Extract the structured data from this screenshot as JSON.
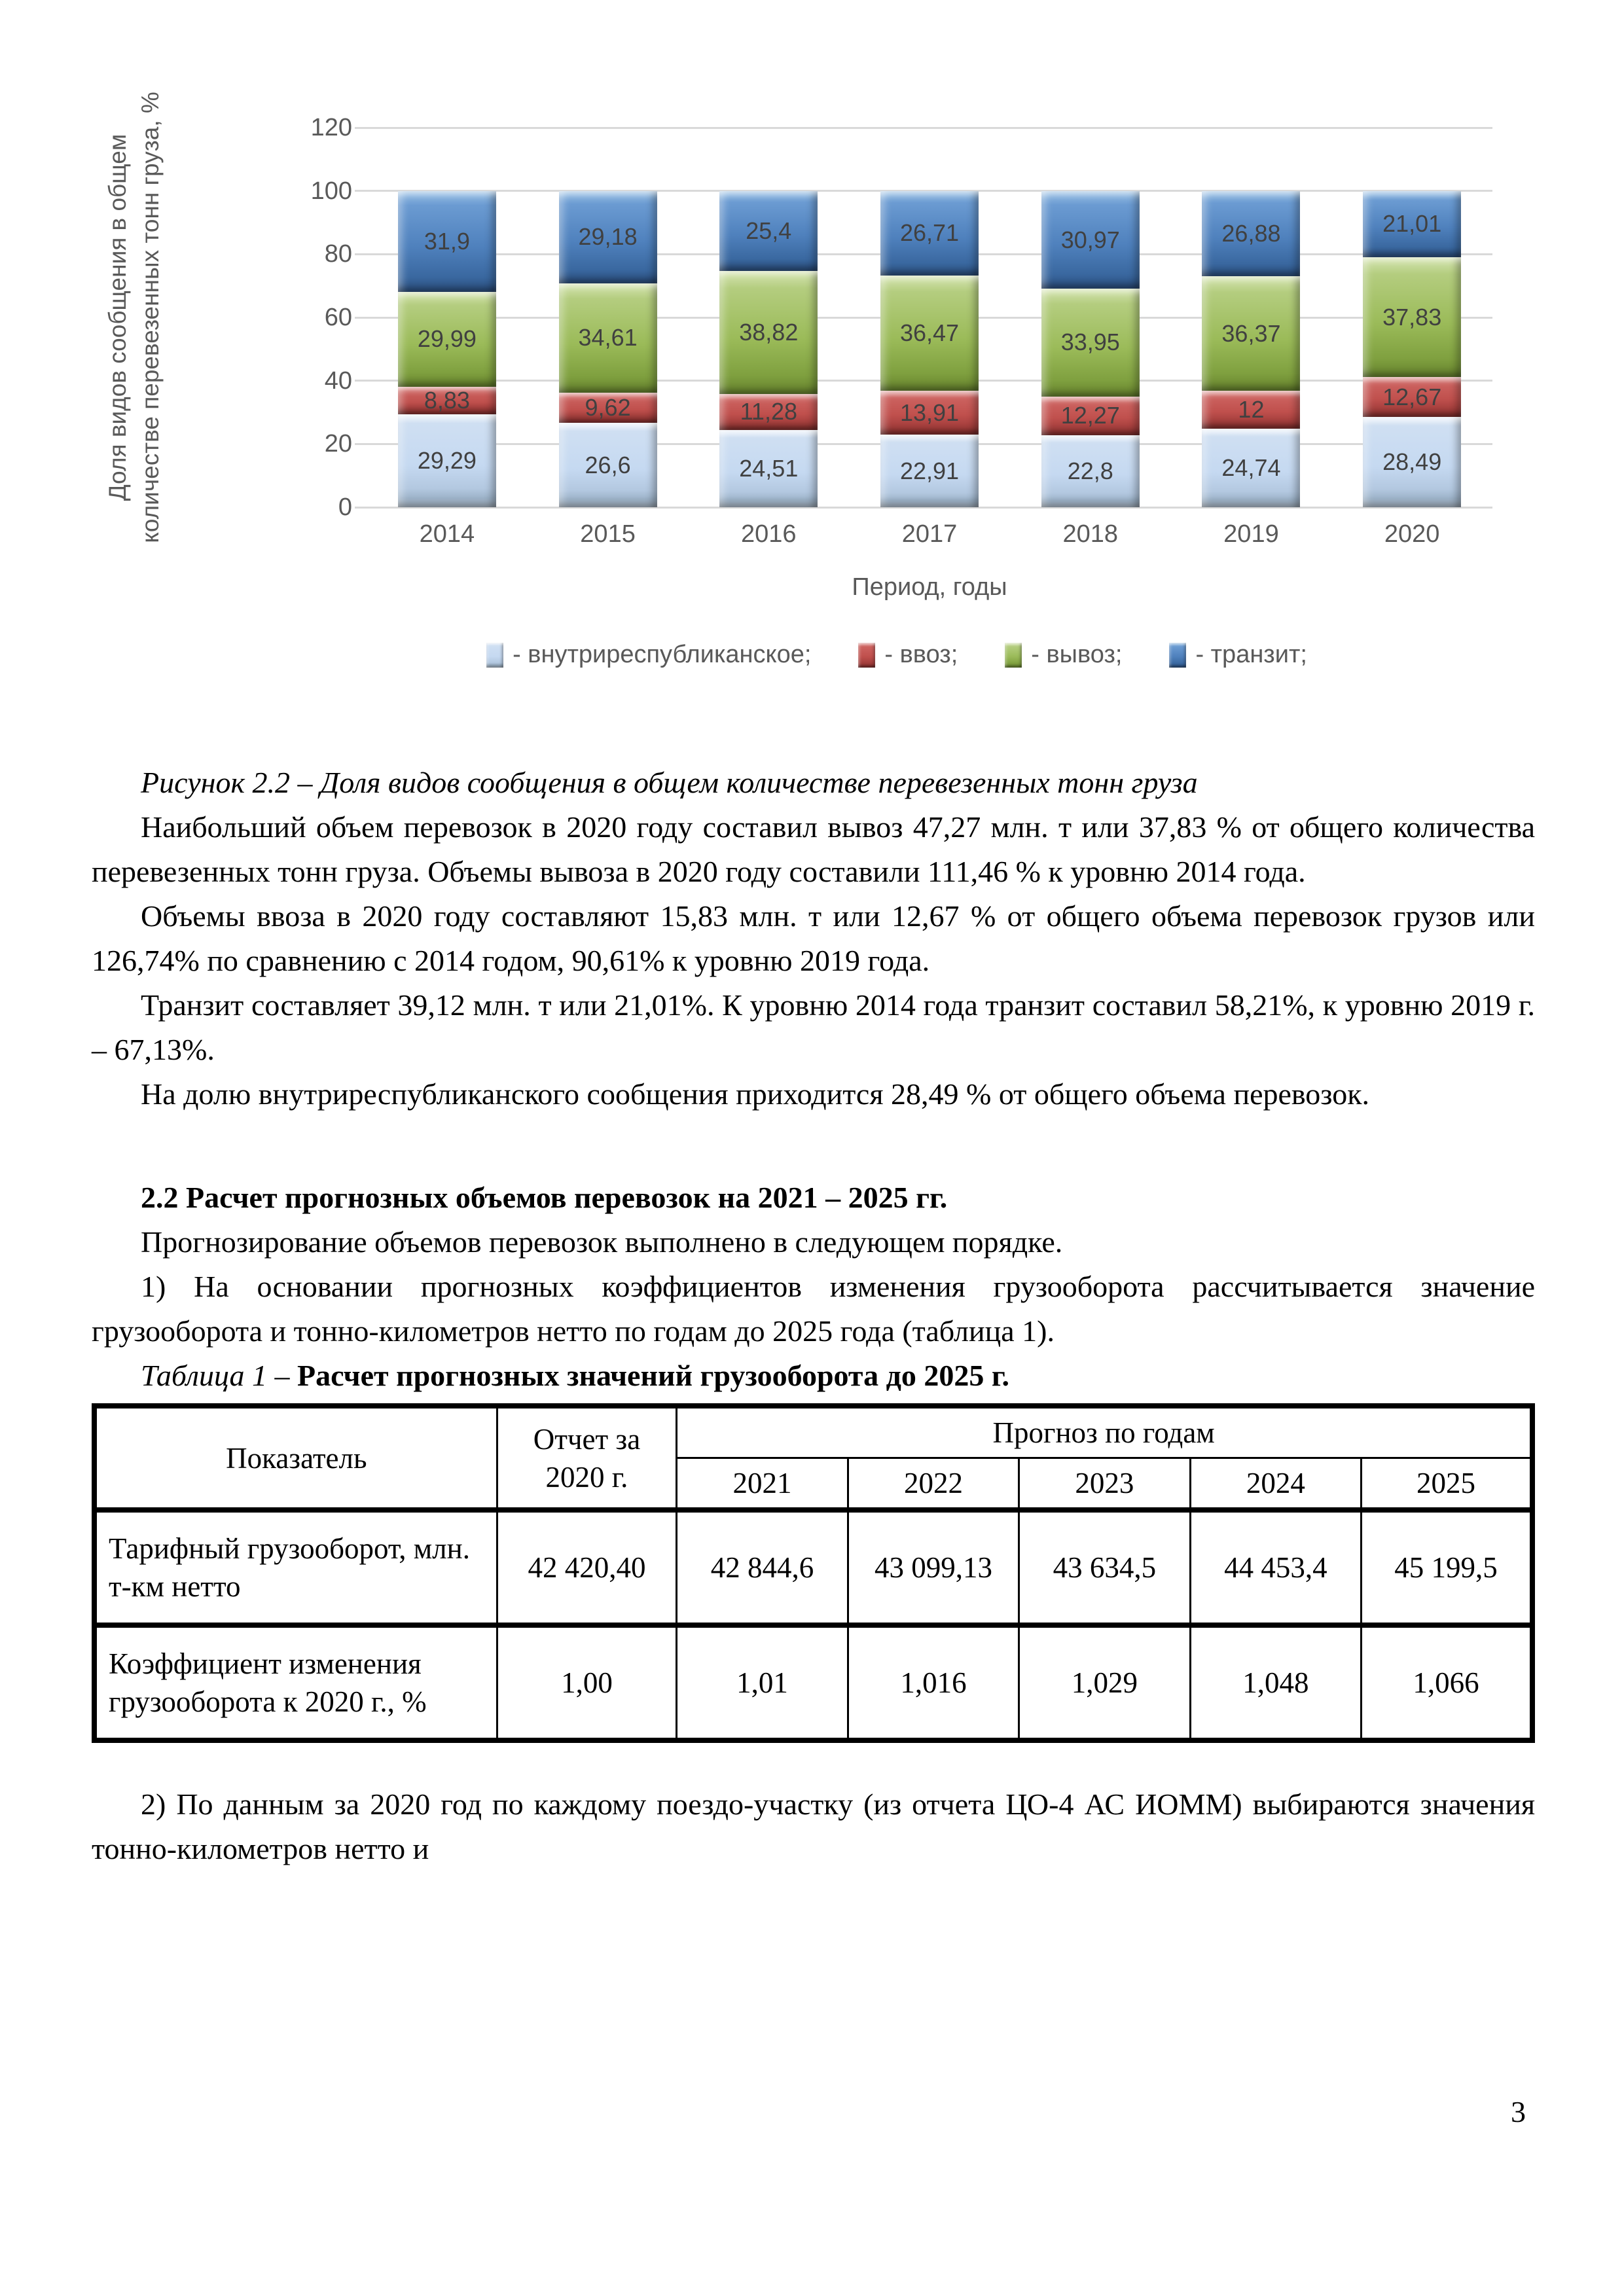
{
  "chart_data": {
    "type": "bar",
    "stacked": true,
    "categories": [
      "2014",
      "2015",
      "2016",
      "2017",
      "2018",
      "2019",
      "2020"
    ],
    "series": [
      {
        "name": "внутриреспубликанское",
        "color": "#C5D9F1",
        "values": [
          29.29,
          26.6,
          24.51,
          22.91,
          22.8,
          24.74,
          28.49
        ],
        "labels": [
          "29,29",
          "26,6",
          "24,51",
          "22,91",
          "22,8",
          "24,74",
          "28,49"
        ]
      },
      {
        "name": "ввоз",
        "color": "#C0504D",
        "values": [
          8.83,
          9.62,
          11.28,
          13.91,
          12.27,
          12,
          12.67
        ],
        "labels": [
          "8,83",
          "9,62",
          "11,28",
          "13,91",
          "12,27",
          "12",
          "12,67"
        ]
      },
      {
        "name": "вывоз",
        "color": "#9BBB59",
        "values": [
          29.99,
          34.61,
          38.82,
          36.47,
          33.95,
          36.37,
          37.83
        ],
        "labels": [
          "29,99",
          "34,61",
          "38,82",
          "36,47",
          "33,95",
          "36,37",
          "37,83"
        ]
      },
      {
        "name": "транзит",
        "color": "#4F81BD",
        "values": [
          31.9,
          29.18,
          25.4,
          26.71,
          30.97,
          26.88,
          21.01
        ],
        "labels": [
          "31,9",
          "29,18",
          "25,4",
          "26,71",
          "30,97",
          "26,88",
          "21,01"
        ]
      }
    ],
    "ylim": [
      0,
      120
    ],
    "yticks": [
      0,
      20,
      40,
      60,
      80,
      100,
      120
    ],
    "grid": true,
    "ylabel_lines": [
      "Доля видов сообщения в общем",
      "количестве перевезенных тонн груза, %"
    ],
    "xlabel": "Период, годы",
    "legend_position": "bottom",
    "legend": [
      "- внутриреспубликанское;",
      "- ввоз;",
      "- вывоз;",
      "- транзит;"
    ]
  },
  "content": {
    "figure_caption": "Рисунок 2.2 – Доля видов сообщения в общем количестве перевезенных тонн груза",
    "p1": "Наибольший объем перевозок в 2020 году составил вывоз 47,27 млн. т или 37,83 % от общего количества перевезенных тонн груза. Объемы вывоза в 2020 году составили 111,46 % к уровню 2014 года.",
    "p2": "Объемы ввоза в 2020 году составляют 15,83 млн. т или 12,67 % от общего объема перевозок грузов или 126,74% по сравнению с 2014 годом, 90,61% к уровню 2019 года.",
    "p3": "Транзит составляет 39,12 млн. т или 21,01%. К уровню 2014 года транзит составил 58,21%, к уровню 2019 г. – 67,13%.",
    "p4": "На долю внутриреспубликанского сообщения приходится 28,49 % от общего объема перевозок.",
    "section_heading": "2.2 Расчет прогнозных объемов перевозок на 2021 – 2025 гг.",
    "p5": "Прогнозирование объемов перевозок выполнено в следующем порядке.",
    "p6": "1) На основании прогнозных коэффициентов изменения грузооборота рассчитывается значение грузооборота и тонно-километров нетто по годам до 2025 года (таблица 1).",
    "table_caption_italic": "Таблица 1 – ",
    "table_caption_bold": "Расчет прогнозных значений грузооборота до 2025 г.",
    "p7": "2) По данным за 2020 год по каждому поездо-участку (из отчета ЦО-4 АС ИОММ) выбираются значения тонно-километров нетто и",
    "page_number": "3"
  },
  "table": {
    "col_header_indicator": "Показатель",
    "col_header_report": "Отчет за 2020 г.",
    "col_header_forecast": "Прогноз по годам",
    "years": [
      "2021",
      "2022",
      "2023",
      "2024",
      "2025"
    ],
    "rows": [
      {
        "label": "Тарифный грузооборот, млн. т-км нетто",
        "report": "42 420,40",
        "values": [
          "42 844,6",
          "43 099,13",
          "43 634,5",
          "44 453,4",
          "45 199,5"
        ]
      },
      {
        "label": "Коэффициент изменения грузооборота к 2020 г., %",
        "report": "1,00",
        "values": [
          "1,01",
          "1,016",
          "1,029",
          "1,048",
          "1,066"
        ]
      }
    ]
  }
}
